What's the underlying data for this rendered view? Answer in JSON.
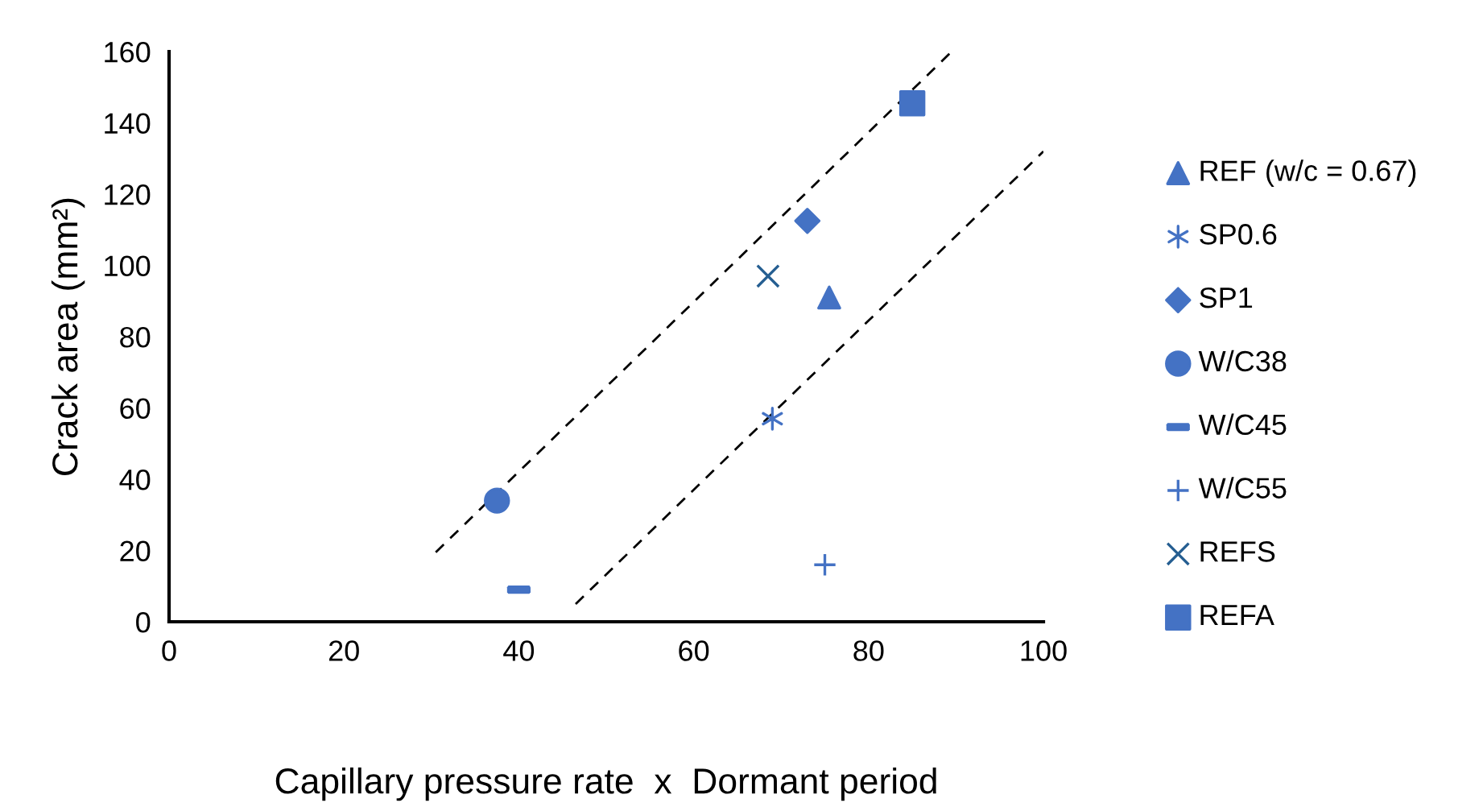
{
  "chart_data": {
    "type": "scatter",
    "xlabel": "Capillary pressure rate  x  Dormant period",
    "ylabel": "Crack area (mm²)",
    "xlim": [
      0,
      100
    ],
    "ylim": [
      0,
      160
    ],
    "xticks": [
      0,
      20,
      40,
      60,
      80,
      100
    ],
    "yticks": [
      0,
      20,
      40,
      60,
      80,
      100,
      120,
      140,
      160
    ],
    "grid": false,
    "legend": "right",
    "series": [
      {
        "name": "REF (w/c = 0.67)",
        "color": "#4472c4",
        "marker": "triangle",
        "x": [
          75.5
        ],
        "values": [
          91
        ]
      },
      {
        "name": "SP0.6",
        "color": "#4472c4",
        "marker": "cross",
        "x": [
          69
        ],
        "values": [
          57
        ]
      },
      {
        "name": "SP1",
        "color": "#4472c4",
        "marker": "diamond",
        "x": [
          73
        ],
        "values": [
          112.5
        ]
      },
      {
        "name": "W/C38",
        "color": "#4472c4",
        "marker": "circle",
        "x": [
          37.5
        ],
        "values": [
          34
        ]
      },
      {
        "name": "W/C45",
        "color": "#4472c4",
        "x": [
          40
        ],
        "values": [
          9
        ]
      },
      {
        "name": "W/C55",
        "color": "#4472c4",
        "marker": "plus",
        "x": [
          75
        ],
        "values": [
          16
        ]
      },
      {
        "name": "REFS",
        "color": "#255e91",
        "marker": "cross",
        "x": [
          68.5
        ],
        "values": [
          97
        ]
      },
      {
        "name": "REFA",
        "color": "#4472c4",
        "marker": "square",
        "x": [
          85
        ],
        "values": [
          145.5
        ]
      },
      {
        "type": "line",
        "color": "#000000",
        "line_style": "dashed",
        "marker": "none",
        "x": [
          30.5,
          89.5
        ],
        "values": [
          19.5,
          160
        ]
      },
      {
        "type": "line",
        "color": "#000000",
        "line_style": "dashed",
        "marker": "none",
        "x": [
          46.5,
          100
        ],
        "values": [
          5,
          132
        ]
      }
    ]
  }
}
